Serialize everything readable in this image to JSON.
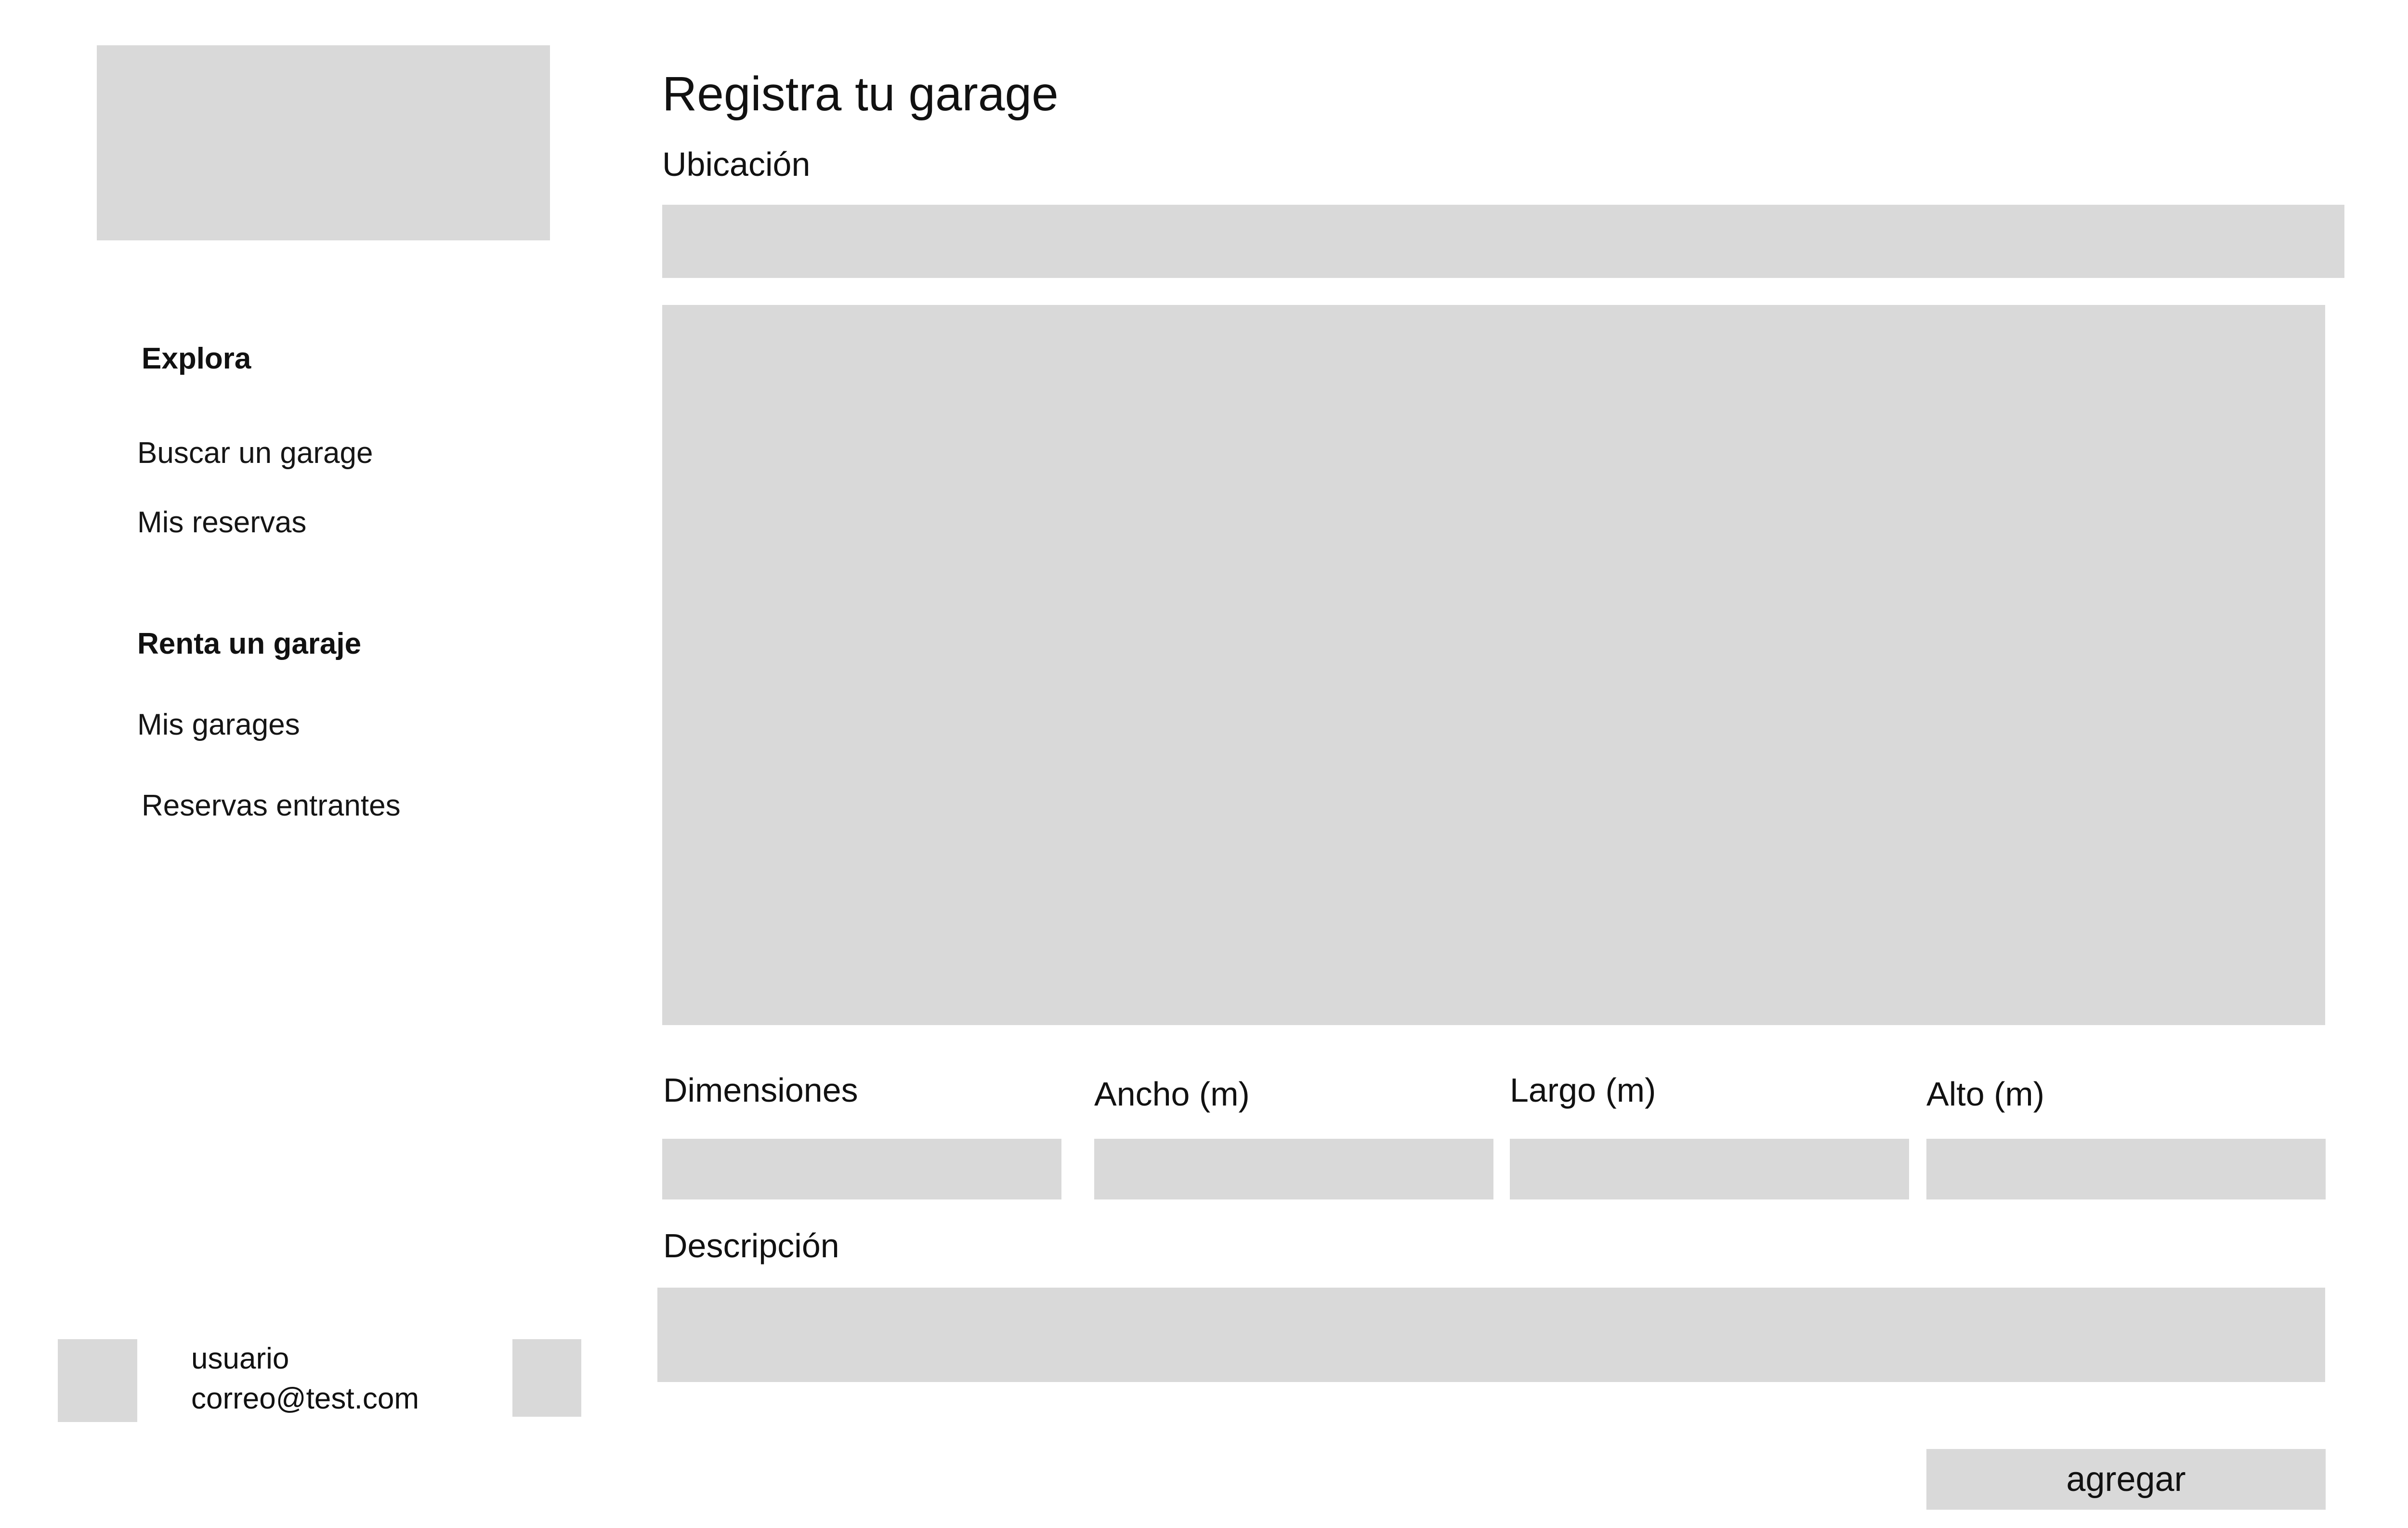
{
  "sidebar": {
    "sections": [
      {
        "heading": "Explora",
        "items": [
          {
            "label": "Buscar un garage"
          },
          {
            "label": "Mis reservas"
          }
        ]
      },
      {
        "heading": "Renta un garaje",
        "items": [
          {
            "label": "Mis garages"
          },
          {
            "label": "Reservas entrantes"
          }
        ]
      }
    ],
    "user": {
      "name": "usuario",
      "email": "correo@test.com"
    }
  },
  "main": {
    "title": "Registra tu garage",
    "ubicacion": {
      "label": "Ubicación",
      "value": ""
    },
    "dimensiones": {
      "label": "Dimensiones",
      "ancho_label": "Ancho (m)",
      "largo_label": "Largo (m)",
      "alto_label": "Alto (m)"
    },
    "descripcion": {
      "label": "Descripción",
      "value": ""
    },
    "submit_label": "agregar"
  },
  "colors": {
    "placeholder_block": "#d9d9d9",
    "background": "#ffffff",
    "text": "#111111"
  }
}
